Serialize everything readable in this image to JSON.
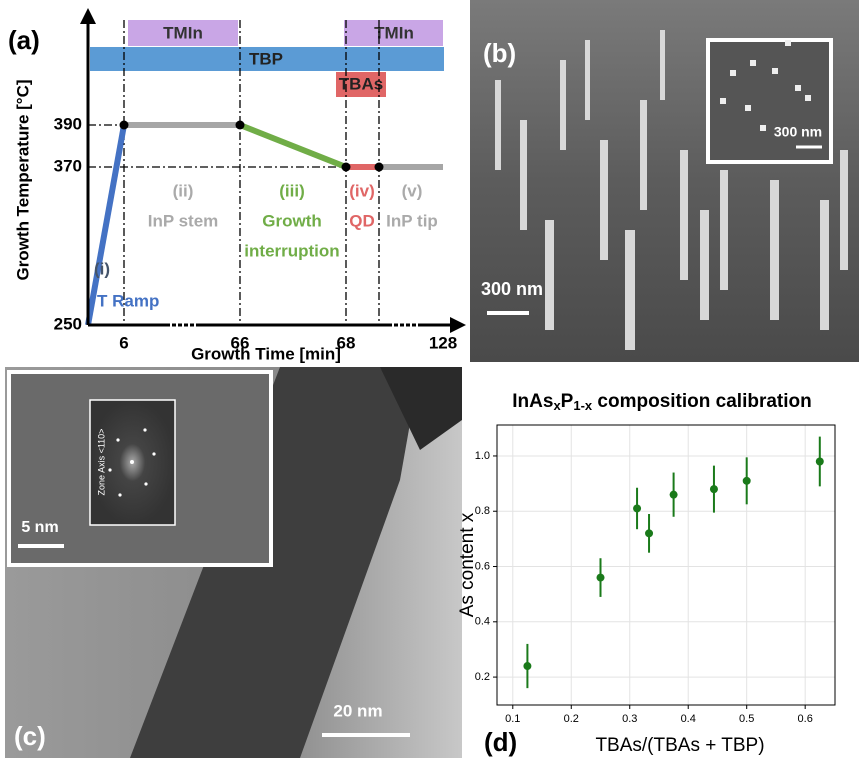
{
  "panel_a": {
    "label": "(a)",
    "tmin_labels": [
      "TMIn",
      "TMIn"
    ],
    "tbp": "TBP",
    "tbas": "TBAs",
    "y_axis_label": "Growth Temperature [°C]",
    "y_tick_labels": [
      "390",
      "370",
      "250"
    ],
    "x_axis_label": "Growth Time [min]",
    "x_tick_labels": [
      "6",
      "66",
      "68",
      "128"
    ],
    "phases": [
      {
        "number": "(i)",
        "lines": [
          "T Ramp"
        ]
      },
      {
        "number": "(ii)",
        "lines": [
          "InP stem"
        ]
      },
      {
        "number": "(iii)",
        "lines": [
          "Growth",
          "interruption"
        ]
      },
      {
        "number": "(iv)",
        "lines": [
          "QD"
        ]
      },
      {
        "number": "(v)",
        "lines": [
          "InP tip"
        ]
      }
    ]
  },
  "panel_b": {
    "label": "(b)",
    "inset_scale": "300 nm",
    "scale": "300 nm"
  },
  "panel_c": {
    "label": "(c)",
    "inset_caption": "Zone Axis <110>",
    "inset_scale": "5 nm",
    "scale": "20 nm"
  },
  "chart_data": {
    "type": "scatter",
    "panel_label": "(d)",
    "title": [
      "InAs",
      "x",
      "P",
      "1-x",
      " composition calibration"
    ],
    "x_label": "TBAs/(TBAs + TBP)",
    "y_label": "As content x",
    "series": [
      {
        "color": "#1a7a1a",
        "x": [
          0.125,
          0.25,
          0.3125,
          0.333,
          0.375,
          0.444,
          0.5,
          0.625
        ],
        "values": [
          0.24,
          0.56,
          0.81,
          0.72,
          0.86,
          0.88,
          0.91,
          0.98
        ],
        "errors": [
          0.08,
          0.07,
          0.075,
          0.07,
          0.08,
          0.085,
          0.085,
          0.09
        ]
      }
    ],
    "xlim": [
      0.073,
      0.651
    ],
    "ylim": [
      0.099,
      1.112
    ],
    "xticks": [
      0.1,
      0.2,
      0.3,
      0.4,
      0.5,
      0.6
    ],
    "yticks": [
      0.2,
      0.4,
      0.6,
      0.8,
      {
        "value": 1,
        "label": "1.0"
      }
    ],
    "grid": true
  }
}
